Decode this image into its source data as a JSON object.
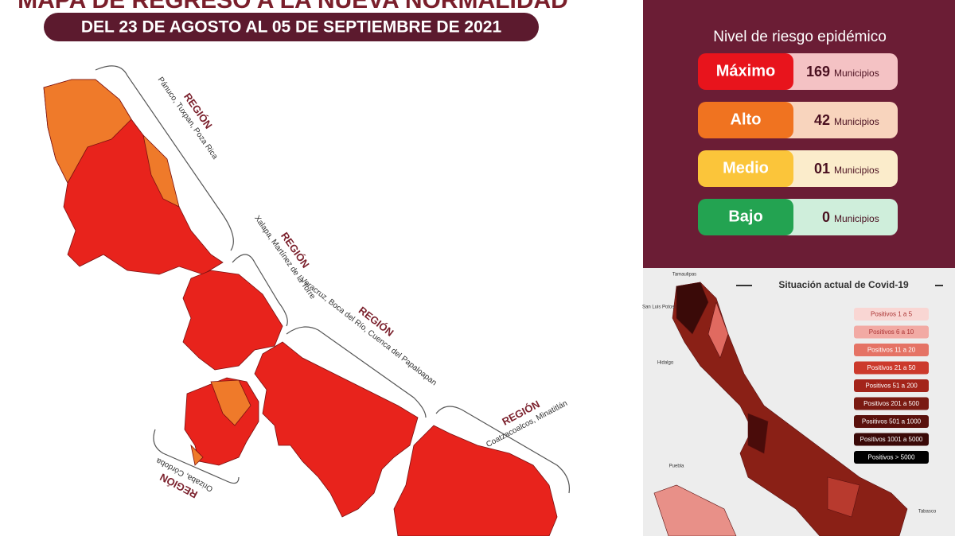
{
  "header": {
    "title": "MAPA DE REGRESO A LA NUEVA NORMALIDAD",
    "subtitle": "DEL 23 DE AGOSTO AL 05 DE SEPTIEMBRE DE 2021"
  },
  "regions": [
    {
      "label": "REGIÓN",
      "cities": "Pánuco, Tuxpan, Poza Rica"
    },
    {
      "label": "REGIÓN",
      "cities": "Xalapa, Martínez de la Torre"
    },
    {
      "label": "REGIÓN",
      "cities": "Veracruz, Boca del Río, Cuenca del Papaloapan"
    },
    {
      "label": "REGIÓN",
      "cities": "Coatzacoalcos, Minatitlán"
    },
    {
      "label": "REGIÓN",
      "cities": "Orizaba, Córdoba"
    }
  ],
  "risk": {
    "title": "Nivel de riesgo epidémico",
    "levels": [
      {
        "name": "Máximo",
        "count": "169",
        "unit": "Municipios"
      },
      {
        "name": "Alto",
        "count": "42",
        "unit": "Municipios"
      },
      {
        "name": "Medio",
        "count": "01",
        "unit": "Municipios"
      },
      {
        "name": "Bajo",
        "count": "0",
        "unit": "Municipios"
      }
    ]
  },
  "covid": {
    "title": "Situación actual de Covid-19",
    "legend": [
      "Positivos 1 a 5",
      "Positivos 6 a 10",
      "Positivos 11 a 20",
      "Positivos 21 a 50",
      "Positivos 51 a 200",
      "Positivos 201 a 500",
      "Positivos 501 a 1000",
      "Positivos 1001 a 5000",
      "Positivos > 5000"
    ],
    "places": [
      "Tamaulipas",
      "San Luis Potosí",
      "Hidalgo",
      "Puebla",
      "Tabasco"
    ]
  }
}
